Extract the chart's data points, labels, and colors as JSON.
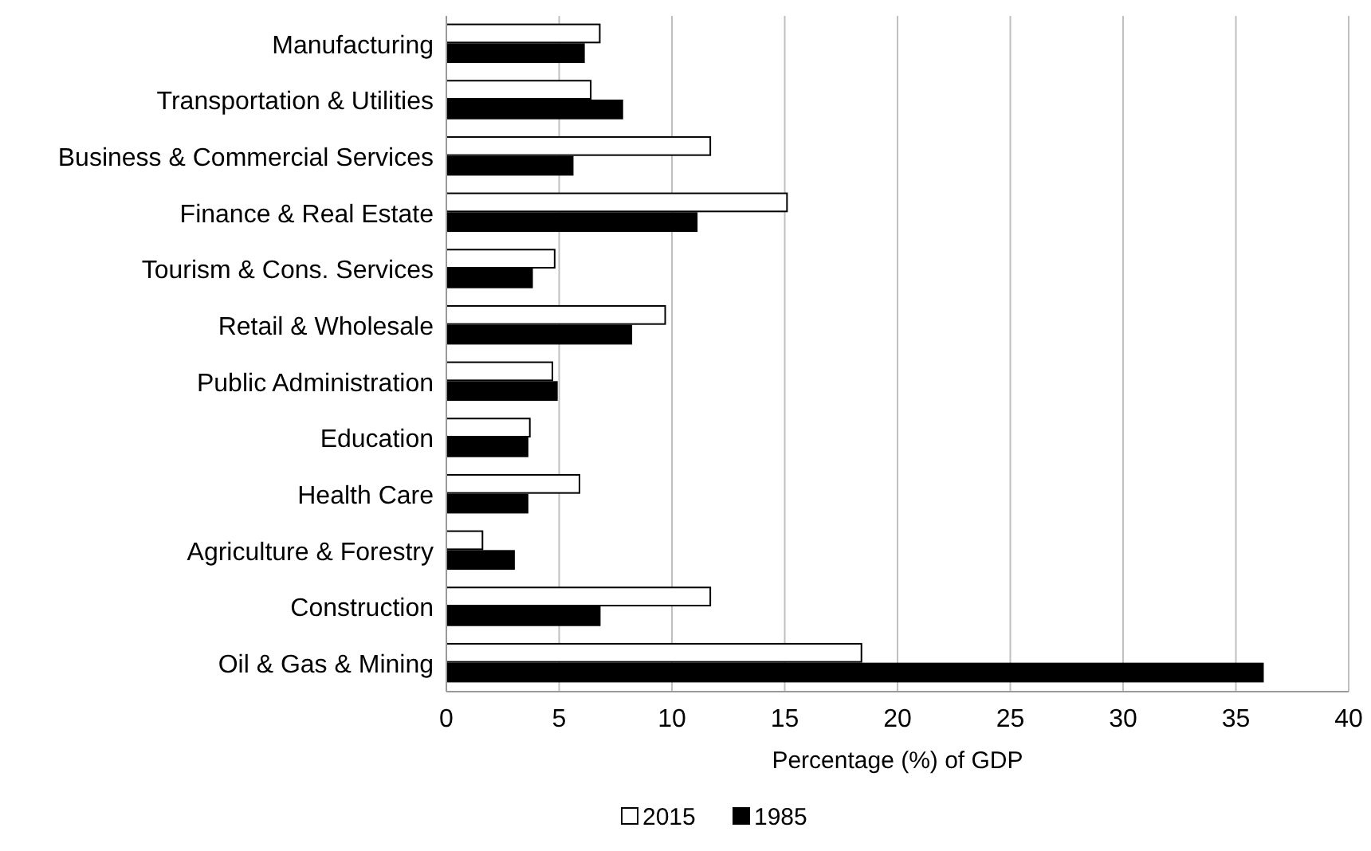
{
  "chart_data": {
    "type": "bar",
    "orientation": "horizontal",
    "xlabel": "Percentage (%) of GDP",
    "categories": [
      "Manufacturing",
      "Transportation & Utilities",
      "Business & Commercial Services",
      "Finance & Real Estate",
      "Tourism & Cons. Services",
      "Retail & Wholesale",
      "Public Administration",
      "Education",
      "Health Care",
      "Agriculture & Forestry",
      "Construction",
      "Oil & Gas & Mining"
    ],
    "series": [
      {
        "name": "2015",
        "color": "#ffffff",
        "values": [
          6.8,
          6.4,
          11.7,
          15.1,
          4.8,
          9.7,
          4.7,
          3.7,
          5.9,
          1.6,
          11.7,
          18.4
        ]
      },
      {
        "name": "1985",
        "color": "#000000",
        "values": [
          6.1,
          7.8,
          5.6,
          11.1,
          3.8,
          8.2,
          4.9,
          3.6,
          3.6,
          3.0,
          6.8,
          36.2
        ]
      }
    ],
    "xlim": [
      0,
      40
    ],
    "xticks": [
      0,
      5,
      10,
      15,
      20,
      25,
      30,
      35,
      40
    ],
    "grid": "x",
    "legend": "bottom"
  }
}
